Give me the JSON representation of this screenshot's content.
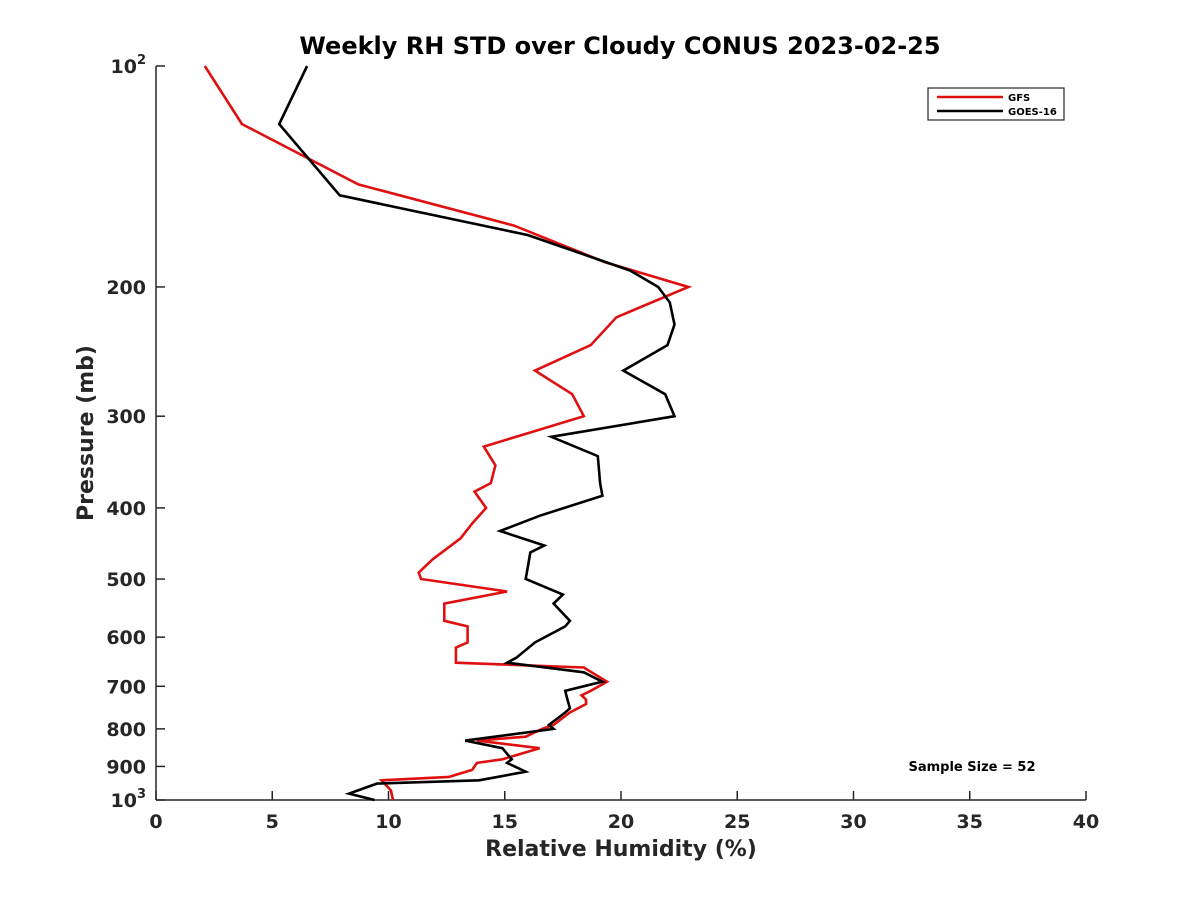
{
  "chart_data": {
    "type": "line",
    "title": "Weekly RH STD over Cloudy CONUS 2023-02-25",
    "xlabel": "Relative Humidity (%)",
    "ylabel": "Pressure (mb)",
    "xlim": [
      0,
      40
    ],
    "ylim": [
      100,
      1000
    ],
    "y_scale": "log",
    "y_reversed": true,
    "grid": false,
    "legend_position": "top-right",
    "x_ticks": [
      "0",
      "5",
      "10",
      "15",
      "20",
      "25",
      "30",
      "35",
      "40"
    ],
    "y_ticks": [
      {
        "value": 100,
        "base": "10",
        "exp": "2"
      },
      {
        "value": 200,
        "label": "200"
      },
      {
        "value": 300,
        "label": "300"
      },
      {
        "value": 400,
        "label": "400"
      },
      {
        "value": 500,
        "label": "500"
      },
      {
        "value": 600,
        "label": "600"
      },
      {
        "value": 700,
        "label": "700"
      },
      {
        "value": 800,
        "label": "800"
      },
      {
        "value": 900,
        "label": "900"
      },
      {
        "value": 1000,
        "base": "10",
        "exp": "3"
      }
    ],
    "annotation": "Sample Size = 52",
    "series": [
      {
        "name": "GFS",
        "color": "#e01010",
        "points": [
          [
            2.1,
            100
          ],
          [
            3.7,
            120
          ],
          [
            8.7,
            145
          ],
          [
            15.4,
            165
          ],
          [
            19.3,
            185
          ],
          [
            22.9,
            200
          ],
          [
            19.8,
            220
          ],
          [
            18.7,
            240
          ],
          [
            16.3,
            260
          ],
          [
            17.9,
            280
          ],
          [
            18.4,
            300
          ],
          [
            14.1,
            330
          ],
          [
            14.6,
            350
          ],
          [
            14.4,
            370
          ],
          [
            13.7,
            380
          ],
          [
            14.2,
            400
          ],
          [
            13.6,
            420
          ],
          [
            13.1,
            440
          ],
          [
            11.9,
            470
          ],
          [
            11.3,
            490
          ],
          [
            11.4,
            500
          ],
          [
            15.1,
            520
          ],
          [
            12.4,
            540
          ],
          [
            12.4,
            570
          ],
          [
            13.4,
            580
          ],
          [
            13.4,
            610
          ],
          [
            12.9,
            620
          ],
          [
            12.9,
            650
          ],
          [
            18.4,
            660
          ],
          [
            19.4,
            690
          ],
          [
            18.7,
            710
          ],
          [
            18.3,
            720
          ],
          [
            18.5,
            730
          ],
          [
            18.5,
            740
          ],
          [
            17.8,
            760
          ],
          [
            17.1,
            790
          ],
          [
            16.6,
            800
          ],
          [
            15.9,
            820
          ],
          [
            13.8,
            830
          ],
          [
            16.5,
            850
          ],
          [
            14.9,
            880
          ],
          [
            13.8,
            890
          ],
          [
            13.6,
            910
          ],
          [
            12.6,
            930
          ],
          [
            9.7,
            940
          ],
          [
            10.1,
            970
          ],
          [
            10.2,
            1000
          ]
        ]
      },
      {
        "name": "GOES-16",
        "color": "#000000",
        "points": [
          [
            6.5,
            100
          ],
          [
            5.3,
            120
          ],
          [
            7.9,
            150
          ],
          [
            16.0,
            170
          ],
          [
            20.4,
            190
          ],
          [
            21.6,
            200
          ],
          [
            22.1,
            210
          ],
          [
            22.3,
            225
          ],
          [
            22.0,
            240
          ],
          [
            20.1,
            260
          ],
          [
            21.9,
            280
          ],
          [
            22.3,
            300
          ],
          [
            17.0,
            320
          ],
          [
            19.0,
            340
          ],
          [
            19.1,
            370
          ],
          [
            19.2,
            385
          ],
          [
            16.5,
            410
          ],
          [
            14.8,
            430
          ],
          [
            16.7,
            450
          ],
          [
            16.1,
            460
          ],
          [
            16.0,
            480
          ],
          [
            15.9,
            500
          ],
          [
            17.5,
            525
          ],
          [
            17.1,
            540
          ],
          [
            17.8,
            570
          ],
          [
            17.6,
            580
          ],
          [
            16.3,
            610
          ],
          [
            15.5,
            640
          ],
          [
            15.1,
            650
          ],
          [
            18.4,
            670
          ],
          [
            19.2,
            690
          ],
          [
            17.6,
            710
          ],
          [
            17.7,
            730
          ],
          [
            17.8,
            750
          ],
          [
            17.6,
            760
          ],
          [
            16.9,
            790
          ],
          [
            17.1,
            800
          ],
          [
            13.3,
            830
          ],
          [
            14.9,
            850
          ],
          [
            15.3,
            880
          ],
          [
            15.1,
            890
          ],
          [
            15.9,
            915
          ],
          [
            13.9,
            940
          ],
          [
            9.5,
            950
          ],
          [
            8.3,
            980
          ],
          [
            9.4,
            1000
          ]
        ]
      }
    ]
  }
}
